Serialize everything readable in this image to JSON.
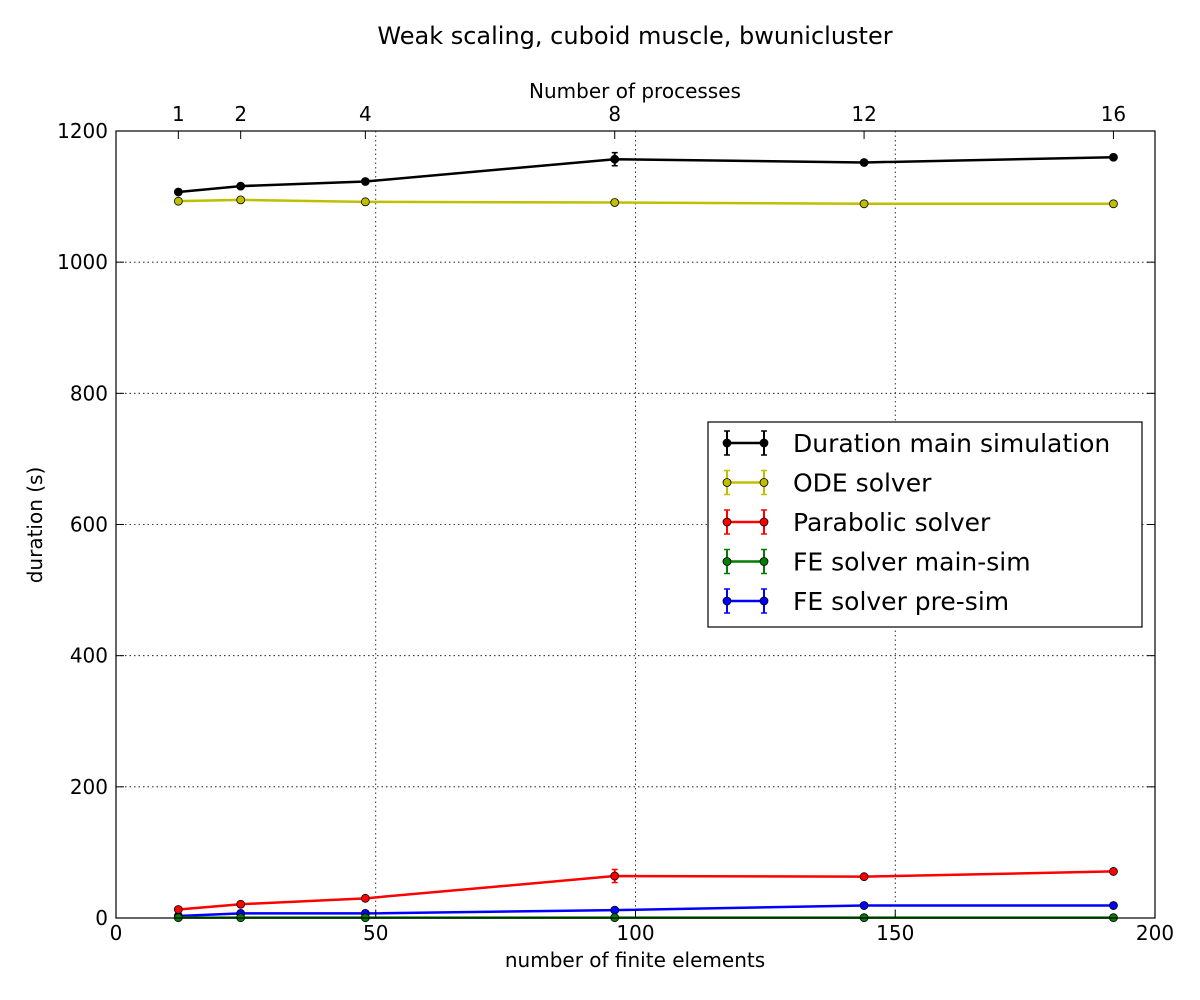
{
  "chart_data": {
    "type": "line",
    "title": "Weak scaling, cuboid muscle, bwunicluster",
    "xlabel": "number of finite elements",
    "ylabel": "duration (s)",
    "x2label": "Number of processes",
    "xlim": [
      0,
      200
    ],
    "ylim": [
      0,
      1200
    ],
    "xticks": [
      "0",
      "50",
      "100",
      "150",
      "200"
    ],
    "yticks": [
      "0",
      "200",
      "400",
      "600",
      "800",
      "1000",
      "1200"
    ],
    "x": [
      12,
      24,
      48,
      96,
      144,
      192
    ],
    "top_ticks": [
      "1",
      "2",
      "4",
      "8",
      "12",
      "16"
    ],
    "grid": true,
    "legend_position": "center-right",
    "series": [
      {
        "name": "Duration main simulation",
        "color": "#000000",
        "values": [
          1107,
          1116,
          1123,
          1157,
          1152,
          1160
        ],
        "errors": [
          3,
          3,
          3,
          10,
          3,
          3
        ]
      },
      {
        "name": "ODE solver",
        "color": "#bfbf00",
        "values": [
          1093,
          1095,
          1092,
          1091,
          1089,
          1089
        ],
        "errors": [
          2,
          2,
          2,
          2,
          2,
          2
        ]
      },
      {
        "name": "Parabolic solver",
        "color": "#ff0000",
        "values": [
          13,
          21,
          30,
          64,
          63,
          71
        ],
        "errors": [
          2,
          2,
          2,
          10,
          3,
          2
        ]
      },
      {
        "name": "FE solver main-sim",
        "color": "#007f00",
        "values": [
          0.5,
          0.5,
          0.5,
          0.5,
          0.5,
          0.5
        ],
        "errors": [
          0.2,
          0.2,
          0.2,
          0.2,
          0.2,
          0.2
        ]
      },
      {
        "name": "FE solver pre-sim",
        "color": "#0000ff",
        "values": [
          3,
          7,
          7,
          12,
          19,
          19
        ],
        "errors": [
          1,
          1,
          1,
          1,
          1,
          1
        ]
      }
    ]
  }
}
